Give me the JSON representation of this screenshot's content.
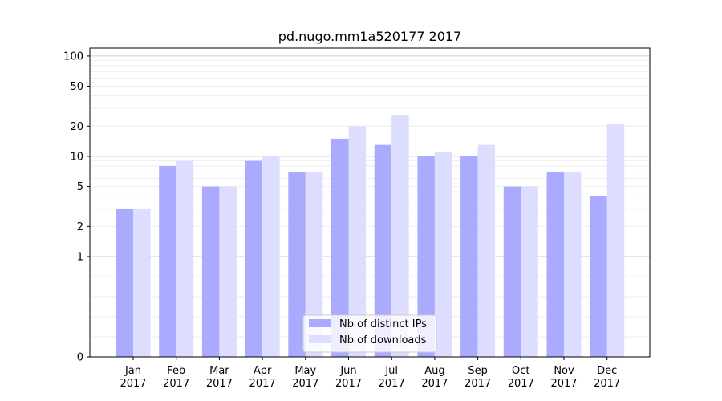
{
  "chart_data": {
    "type": "bar",
    "title": "pd.nugo.mm1a520177 2017",
    "xlabel": "",
    "ylabel": "",
    "y_scale": "symlog",
    "ylim": [
      0,
      120
    ],
    "yticks": [
      0,
      1,
      2,
      5,
      10,
      20,
      50,
      100
    ],
    "categories": [
      [
        "Jan",
        "2017"
      ],
      [
        "Feb",
        "2017"
      ],
      [
        "Mar",
        "2017"
      ],
      [
        "Apr",
        "2017"
      ],
      [
        "May",
        "2017"
      ],
      [
        "Jun",
        "2017"
      ],
      [
        "Jul",
        "2017"
      ],
      [
        "Aug",
        "2017"
      ],
      [
        "Sep",
        "2017"
      ],
      [
        "Oct",
        "2017"
      ],
      [
        "Nov",
        "2017"
      ],
      [
        "Dec",
        "2017"
      ]
    ],
    "series": [
      {
        "name": "Nb of distinct IPs",
        "color": "#aaaaff",
        "values": [
          3,
          8,
          5,
          9,
          7,
          15,
          13,
          10,
          10,
          5,
          7,
          4
        ]
      },
      {
        "name": "Nb of downloads",
        "color": "#ddddff",
        "values": [
          3,
          9,
          5,
          10,
          7,
          20,
          26,
          11,
          13,
          5,
          7,
          21
        ]
      }
    ],
    "grid": true,
    "legend_position": "lower center"
  }
}
